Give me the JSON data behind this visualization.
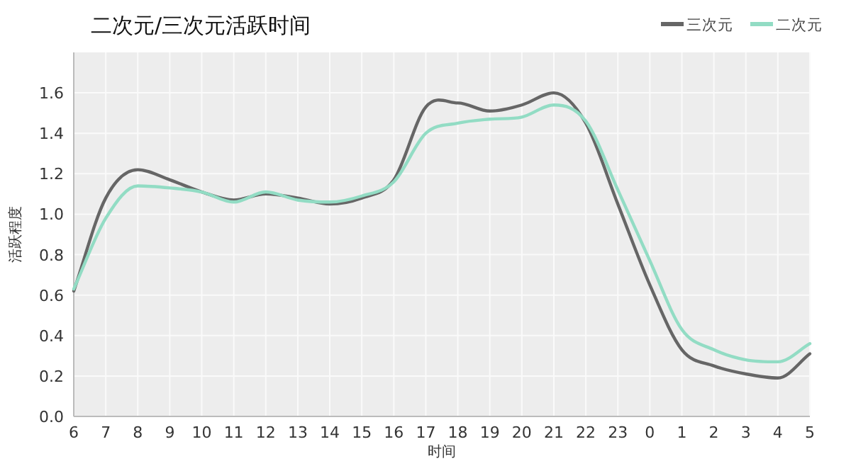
{
  "chart_data": {
    "type": "line",
    "title": "二次元/三次元活跃时间",
    "xlabel": "时间",
    "ylabel": "活跃程度",
    "categories": [
      "6",
      "7",
      "8",
      "9",
      "10",
      "11",
      "12",
      "13",
      "14",
      "15",
      "16",
      "17",
      "18",
      "19",
      "20",
      "21",
      "22",
      "23",
      "0",
      "1",
      "2",
      "3",
      "4",
      "5"
    ],
    "series": [
      {
        "name": "三次元",
        "color": "#666666",
        "values": [
          0.62,
          1.08,
          1.22,
          1.17,
          1.11,
          1.07,
          1.1,
          1.08,
          1.05,
          1.08,
          1.17,
          1.53,
          1.55,
          1.51,
          1.54,
          1.6,
          1.45,
          1.05,
          0.65,
          0.33,
          0.25,
          0.21,
          0.19,
          0.31
        ]
      },
      {
        "name": "二次元",
        "color": "#92dcc4",
        "values": [
          0.63,
          0.98,
          1.14,
          1.13,
          1.11,
          1.06,
          1.11,
          1.07,
          1.06,
          1.09,
          1.16,
          1.4,
          1.45,
          1.47,
          1.48,
          1.54,
          1.46,
          1.12,
          0.77,
          0.43,
          0.33,
          0.28,
          0.27,
          0.36
        ]
      }
    ],
    "ylim": [
      0,
      1.8
    ],
    "yticks": [
      {
        "value": 0,
        "label": "0.0"
      },
      0.2,
      0.4,
      0.6,
      0.8,
      {
        "value": 1,
        "label": "1.0"
      },
      1.2,
      1.4,
      1.6
    ],
    "grid": true,
    "legend": "top right",
    "marker": "none",
    "line_style": "solid"
  }
}
